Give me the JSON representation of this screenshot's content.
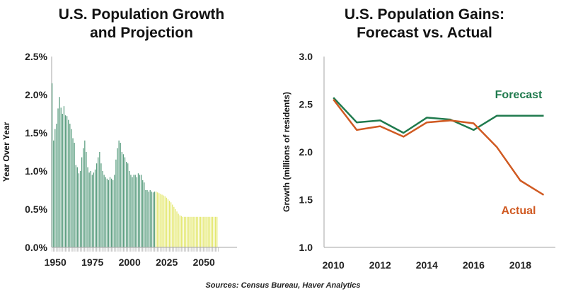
{
  "source": "Sources: Census Bureau, Haver Analytics",
  "colors": {
    "historical": "#5b9e80",
    "projection": "#e4e870",
    "forecast": "#1f7a4d",
    "actual": "#d05a22",
    "axis": "#a6a6a6"
  },
  "chart_data": [
    {
      "type": "bar",
      "title_lines": [
        "U.S. Population Growth",
        "and Projection"
      ],
      "ylabel": "Year Over Year",
      "xlabel": "",
      "ylim": [
        0,
        2.5
      ],
      "yticks": [
        "0.0%",
        "0.5%",
        "1.0%",
        "1.5%",
        "2.0%",
        "2.5%"
      ],
      "ytick_values": [
        0,
        0.5,
        1.0,
        1.5,
        2.0,
        2.5
      ],
      "xticks": [
        "1950",
        "1975",
        "2000",
        "2025",
        "2050"
      ],
      "xtick_values": [
        1950,
        1975,
        2000,
        2025,
        2050
      ],
      "x_start": 1948,
      "projection_start": 2018,
      "series": [
        {
          "type": "historical",
          "values": [
            2.15,
            1.4,
            1.55,
            1.62,
            1.82,
            1.97,
            1.83,
            1.75,
            1.85,
            1.73,
            1.72,
            1.67,
            1.62,
            1.55,
            1.43,
            1.37,
            1.08,
            1.05,
            0.97,
            1.0,
            1.18,
            1.3,
            1.4,
            1.25,
            1.05,
            0.98,
            1.0,
            0.95,
            0.98,
            1.02,
            1.1,
            1.18,
            1.25,
            1.1,
            1.0,
            0.95,
            0.92,
            0.9,
            0.88,
            0.92,
            0.9,
            0.88,
            0.95,
            1.15,
            1.3,
            1.4,
            1.37,
            1.25,
            1.22,
            1.18,
            1.12,
            1.1,
            1.0,
            0.95,
            0.92,
            0.95,
            0.95,
            0.92,
            0.97,
            0.95,
            0.95,
            0.88,
            0.85,
            0.75,
            0.75,
            0.73,
            0.75,
            0.73,
            0.72,
            0.73
          ]
        },
        {
          "type": "projection",
          "values": [
            0.73,
            0.72,
            0.71,
            0.7,
            0.69,
            0.68,
            0.67,
            0.65,
            0.63,
            0.61,
            0.59,
            0.56,
            0.53,
            0.5,
            0.47,
            0.44,
            0.42,
            0.41,
            0.4,
            0.4,
            0.4,
            0.4,
            0.4,
            0.4,
            0.4,
            0.4,
            0.4,
            0.4,
            0.4,
            0.4,
            0.4,
            0.4,
            0.4,
            0.4,
            0.4,
            0.4,
            0.4,
            0.4,
            0.4,
            0.4,
            0.4,
            0.4
          ]
        }
      ]
    },
    {
      "type": "line",
      "title_lines": [
        "U.S. Population Gains:",
        "Forecast vs. Actual"
      ],
      "ylabel": "Growth (millions of residents)",
      "xlabel": "",
      "ylim": [
        1.0,
        3.0
      ],
      "yticks": [
        "1.0",
        "1.5",
        "2.0",
        "2.5",
        "3.0"
      ],
      "ytick_values": [
        1.0,
        1.5,
        2.0,
        2.5,
        3.0
      ],
      "xticks": [
        "2010",
        "2012",
        "2014",
        "2016",
        "2018"
      ],
      "xtick_values": [
        2010,
        2012,
        2014,
        2016,
        2018
      ],
      "xlim": [
        2009.6,
        2019.5
      ],
      "series": [
        {
          "name": "Forecast",
          "x": [
            2010,
            2011,
            2012,
            2013,
            2014,
            2015,
            2016,
            2017,
            2018,
            2019
          ],
          "values": [
            2.57,
            2.31,
            2.33,
            2.2,
            2.36,
            2.34,
            2.23,
            2.38,
            2.38,
            2.38
          ]
        },
        {
          "name": "Actual",
          "x": [
            2010,
            2011,
            2012,
            2013,
            2014,
            2015,
            2016,
            2017,
            2018,
            2019
          ],
          "values": [
            2.55,
            2.23,
            2.27,
            2.16,
            2.31,
            2.33,
            2.3,
            2.05,
            1.7,
            1.55
          ]
        }
      ]
    }
  ]
}
